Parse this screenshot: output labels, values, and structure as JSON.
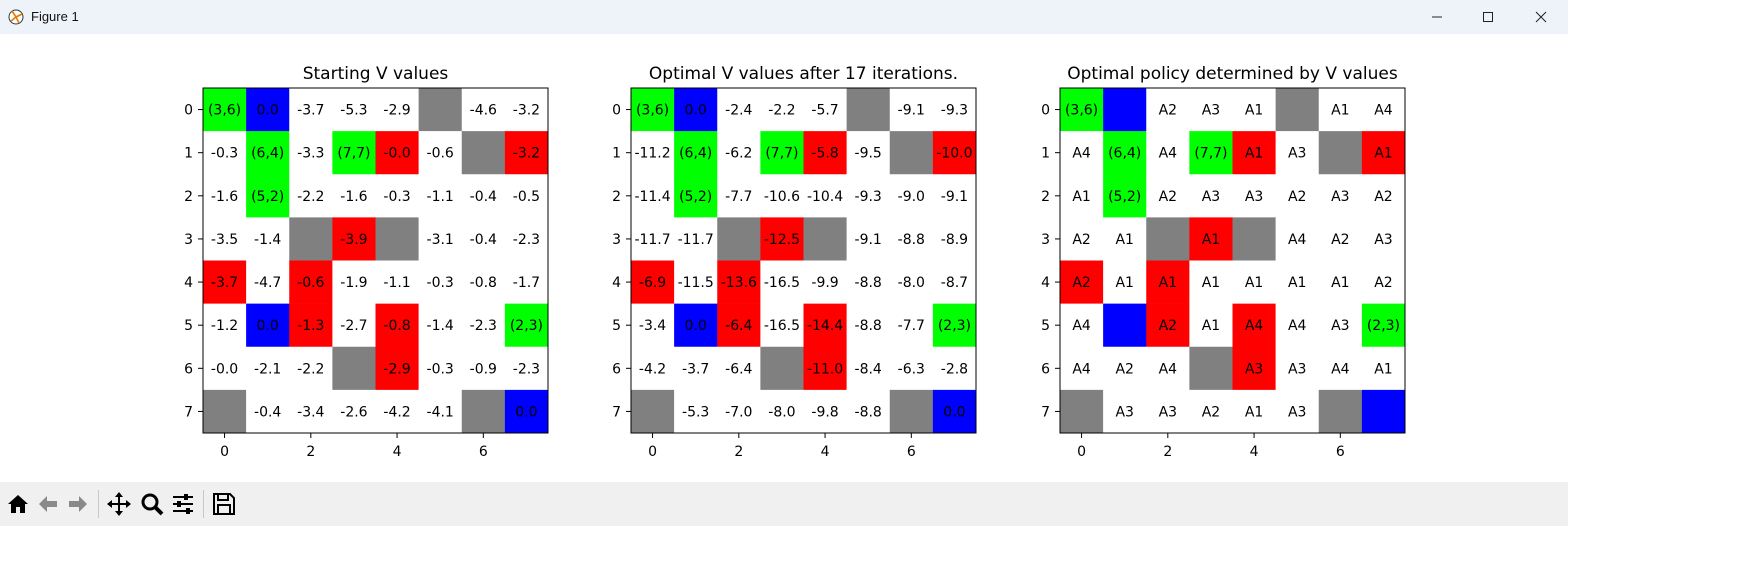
{
  "window": {
    "title": "Figure 1"
  },
  "toolbar": {
    "buttons": [
      "home-icon",
      "back-arrow-icon",
      "forward-arrow-icon",
      "pan-icon",
      "zoom-icon",
      "configure-subplots-icon",
      "save-icon"
    ]
  },
  "colors": {
    "white": "#ffffff",
    "green": "#00ff00",
    "blue": "#0000ff",
    "red": "#ff0000",
    "gray": "#808080"
  },
  "chart_data": [
    {
      "type": "heatmap",
      "title": "Starting V values",
      "xticks": [
        0,
        2,
        4,
        6
      ],
      "yticks": [
        0,
        1,
        2,
        3,
        4,
        5,
        6,
        7
      ],
      "xlim": [
        -0.5,
        7.5
      ],
      "ylim": [
        7.5,
        -0.5
      ],
      "colors": [
        [
          "green",
          "blue",
          "white",
          "white",
          "white",
          "gray",
          "white",
          "white"
        ],
        [
          "white",
          "green",
          "white",
          "green",
          "red",
          "white",
          "gray",
          "red"
        ],
        [
          "white",
          "green",
          "white",
          "white",
          "white",
          "white",
          "white",
          "white"
        ],
        [
          "white",
          "white",
          "gray",
          "red",
          "gray",
          "white",
          "white",
          "white"
        ],
        [
          "red",
          "white",
          "red",
          "white",
          "white",
          "white",
          "white",
          "white"
        ],
        [
          "white",
          "blue",
          "red",
          "white",
          "red",
          "white",
          "white",
          "green"
        ],
        [
          "white",
          "white",
          "white",
          "gray",
          "red",
          "white",
          "white",
          "white"
        ],
        [
          "gray",
          "white",
          "white",
          "white",
          "white",
          "white",
          "gray",
          "blue"
        ]
      ],
      "labels": [
        [
          "(3,6)",
          "0.0",
          "-3.7",
          "-5.3",
          "-2.9",
          "",
          "-4.6",
          "-3.2"
        ],
        [
          "-0.3",
          "(6,4)",
          "-3.3",
          "(7,7)",
          "-0.0",
          "-0.6",
          "",
          "-3.2"
        ],
        [
          "-1.6",
          "(5,2)",
          "-2.2",
          "-1.6",
          "-0.3",
          "-1.1",
          "-0.4",
          "-0.5"
        ],
        [
          "-3.5",
          "-1.4",
          "",
          "-3.9",
          "",
          "-3.1",
          "-0.4",
          "-2.3"
        ],
        [
          "-3.7",
          "-4.7",
          "-0.6",
          "-1.9",
          "-1.1",
          "-0.3",
          "-0.8",
          "-1.7"
        ],
        [
          "-1.2",
          "0.0",
          "-1.3",
          "-2.7",
          "-0.8",
          "-1.4",
          "-2.3",
          "(2,3)"
        ],
        [
          "-0.0",
          "-2.1",
          "-2.2",
          "",
          "-2.9",
          "-0.3",
          "-0.9",
          "-2.3"
        ],
        [
          "",
          "-0.4",
          "-3.4",
          "-2.6",
          "-4.2",
          "-4.1",
          "",
          "0.0"
        ]
      ]
    },
    {
      "type": "heatmap",
      "title": "Optimal V values after 17 iterations.",
      "xticks": [
        0,
        2,
        4,
        6
      ],
      "yticks": [
        0,
        1,
        2,
        3,
        4,
        5,
        6,
        7
      ],
      "xlim": [
        -0.5,
        7.5
      ],
      "ylim": [
        7.5,
        -0.5
      ],
      "colors": [
        [
          "green",
          "blue",
          "white",
          "white",
          "white",
          "gray",
          "white",
          "white"
        ],
        [
          "white",
          "green",
          "white",
          "green",
          "red",
          "white",
          "gray",
          "red"
        ],
        [
          "white",
          "green",
          "white",
          "white",
          "white",
          "white",
          "white",
          "white"
        ],
        [
          "white",
          "white",
          "gray",
          "red",
          "gray",
          "white",
          "white",
          "white"
        ],
        [
          "red",
          "white",
          "red",
          "white",
          "white",
          "white",
          "white",
          "white"
        ],
        [
          "white",
          "blue",
          "red",
          "white",
          "red",
          "white",
          "white",
          "green"
        ],
        [
          "white",
          "white",
          "white",
          "gray",
          "red",
          "white",
          "white",
          "white"
        ],
        [
          "gray",
          "white",
          "white",
          "white",
          "white",
          "white",
          "gray",
          "blue"
        ]
      ],
      "labels": [
        [
          "(3,6)",
          "0.0",
          "-2.4",
          "-2.2",
          "-5.7",
          "",
          "-9.1",
          "-9.3"
        ],
        [
          "-11.2",
          "(6,4)",
          "-6.2",
          "(7,7)",
          "-5.8",
          "-9.5",
          "",
          "-10.0"
        ],
        [
          "-11.4",
          "(5,2)",
          "-7.7",
          "-10.6",
          "-10.4",
          "-9.3",
          "-9.0",
          "-9.1"
        ],
        [
          "-11.7",
          "-11.7",
          "",
          "-12.5",
          "",
          "-9.1",
          "-8.8",
          "-8.9"
        ],
        [
          "-6.9",
          "-11.5",
          "-13.6",
          "-16.5",
          "-9.9",
          "-8.8",
          "-8.0",
          "-8.7"
        ],
        [
          "-3.4",
          "0.0",
          "-6.4",
          "-16.5",
          "-14.4",
          "-8.8",
          "-7.7",
          "(2,3)"
        ],
        [
          "-4.2",
          "-3.7",
          "-6.4",
          "",
          "-11.0",
          "-8.4",
          "-6.3",
          "-2.8"
        ],
        [
          "",
          "-5.3",
          "-7.0",
          "-8.0",
          "-9.8",
          "-8.8",
          "",
          "0.0"
        ]
      ]
    },
    {
      "type": "heatmap",
      "title": "Optimal policy determined by V values",
      "xticks": [
        0,
        2,
        4,
        6
      ],
      "yticks": [
        0,
        1,
        2,
        3,
        4,
        5,
        6,
        7
      ],
      "xlim": [
        -0.5,
        7.5
      ],
      "ylim": [
        7.5,
        -0.5
      ],
      "colors": [
        [
          "green",
          "blue",
          "white",
          "white",
          "white",
          "gray",
          "white",
          "white"
        ],
        [
          "white",
          "green",
          "white",
          "green",
          "red",
          "white",
          "gray",
          "red"
        ],
        [
          "white",
          "green",
          "white",
          "white",
          "white",
          "white",
          "white",
          "white"
        ],
        [
          "white",
          "white",
          "gray",
          "red",
          "gray",
          "white",
          "white",
          "white"
        ],
        [
          "red",
          "white",
          "red",
          "white",
          "white",
          "white",
          "white",
          "white"
        ],
        [
          "white",
          "blue",
          "red",
          "white",
          "red",
          "white",
          "white",
          "green"
        ],
        [
          "white",
          "white",
          "white",
          "gray",
          "red",
          "white",
          "white",
          "white"
        ],
        [
          "gray",
          "white",
          "white",
          "white",
          "white",
          "white",
          "gray",
          "blue"
        ]
      ],
      "labels": [
        [
          "(3,6)",
          "",
          "A2",
          "A3",
          "A1",
          "",
          "A1",
          "A4"
        ],
        [
          "A4",
          "(6,4)",
          "A4",
          "(7,7)",
          "A1",
          "A3",
          "",
          "A1"
        ],
        [
          "A1",
          "(5,2)",
          "A2",
          "A3",
          "A3",
          "A2",
          "A3",
          "A2"
        ],
        [
          "A2",
          "A1",
          "",
          "A1",
          "",
          "A4",
          "A2",
          "A3"
        ],
        [
          "A2",
          "A1",
          "A1",
          "A1",
          "A1",
          "A1",
          "A1",
          "A2"
        ],
        [
          "A4",
          "",
          "A2",
          "A1",
          "A4",
          "A4",
          "A3",
          "(2,3)"
        ],
        [
          "A4",
          "A2",
          "A4",
          "",
          "A3",
          "A3",
          "A4",
          "A1"
        ],
        [
          "",
          "A3",
          "A3",
          "A2",
          "A1",
          "A3",
          "",
          ""
        ]
      ]
    }
  ]
}
